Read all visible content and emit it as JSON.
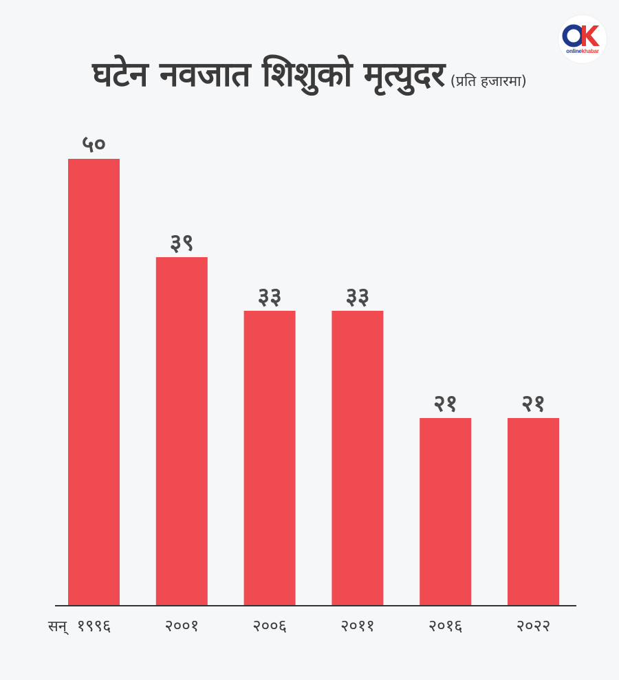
{
  "header": {
    "title": "घटेन नवजात शिशुको मृत्युदर",
    "unit": "(प्रति हजारमा)"
  },
  "logo": {
    "mark": "OK",
    "text_prefix": "online",
    "text_brand": "khabar",
    "colors": {
      "o": "#1f3a8a",
      "k": "#e53935"
    }
  },
  "chart_data": {
    "type": "bar",
    "title": "घटेन नवजात शिशुको मृत्युदर",
    "subtitle": "(प्रति हजारमा)",
    "x_prefix": "सन्",
    "categories": [
      "१९९६",
      "२००१",
      "२००६",
      "२०११",
      "२०१६",
      "२०२२"
    ],
    "values": [
      50,
      39,
      33,
      33,
      21,
      21
    ],
    "value_labels": [
      "५०",
      "३९",
      "३३",
      "३३",
      "२१",
      "२१"
    ],
    "ylim": [
      0,
      50
    ],
    "grid": false,
    "bar_color": "#ef4b50",
    "axis_color": "#333333"
  }
}
